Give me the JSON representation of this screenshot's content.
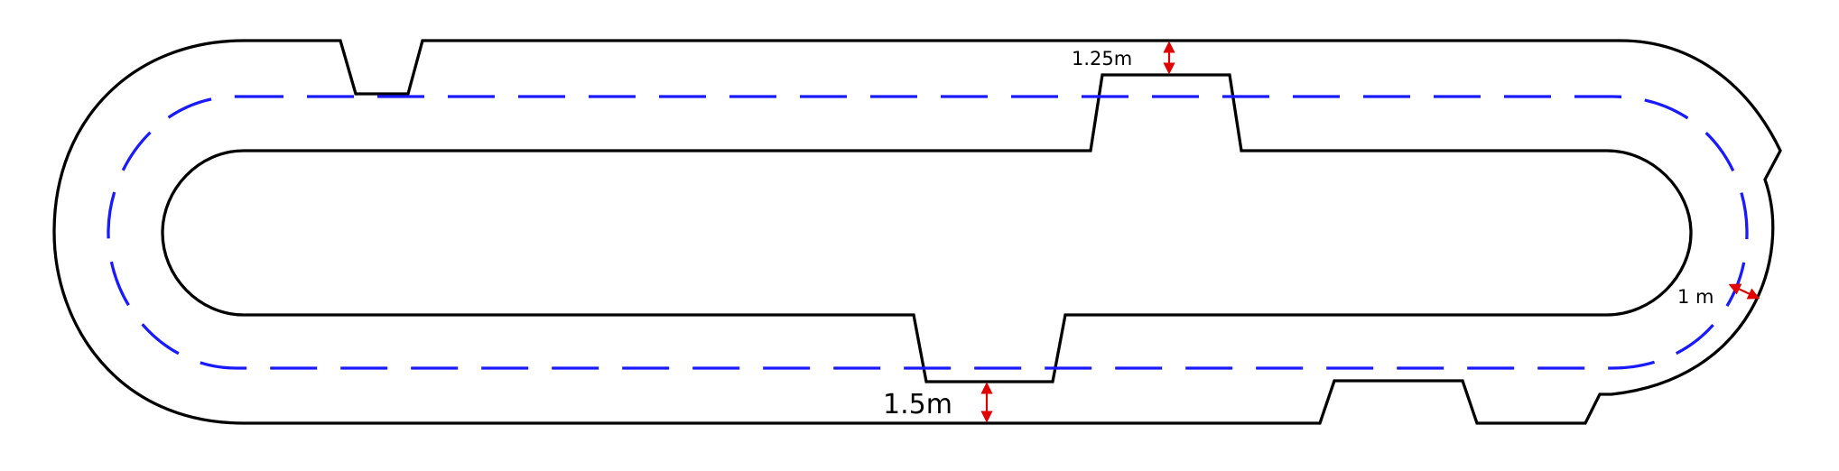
{
  "colors": {
    "track_outline": "#000000",
    "lane_line": "#1a1aff",
    "dimension_arrow": "#e00000"
  },
  "dimensions": {
    "top_label": "1.25m",
    "bottom_label": "1.5m",
    "right_label": "1 m"
  }
}
